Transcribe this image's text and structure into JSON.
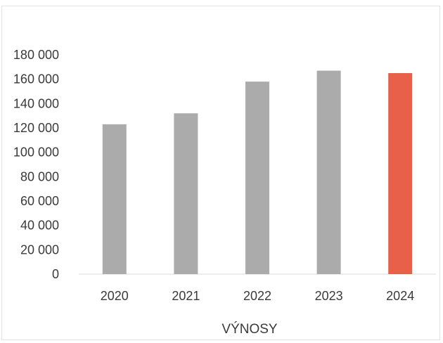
{
  "chart_data": {
    "type": "bar",
    "title": "",
    "xlabel": "VÝNOSY",
    "ylabel": "",
    "categories": [
      "2020",
      "2021",
      "2022",
      "2023",
      "2024"
    ],
    "values": [
      123000,
      132000,
      158000,
      167000,
      165000
    ],
    "ylim": [
      0,
      180000
    ],
    "yticks": [
      0,
      20000,
      40000,
      60000,
      80000,
      100000,
      120000,
      140000,
      160000,
      180000
    ],
    "ytick_labels": [
      "0",
      "20 000",
      "40 000",
      "60 000",
      "80 000",
      "100 000",
      "120 000",
      "140 000",
      "160 000",
      "180 000"
    ],
    "grid": false,
    "colors": [
      "#ababab",
      "#ababab",
      "#ababab",
      "#ababab",
      "#e8604a"
    ]
  }
}
